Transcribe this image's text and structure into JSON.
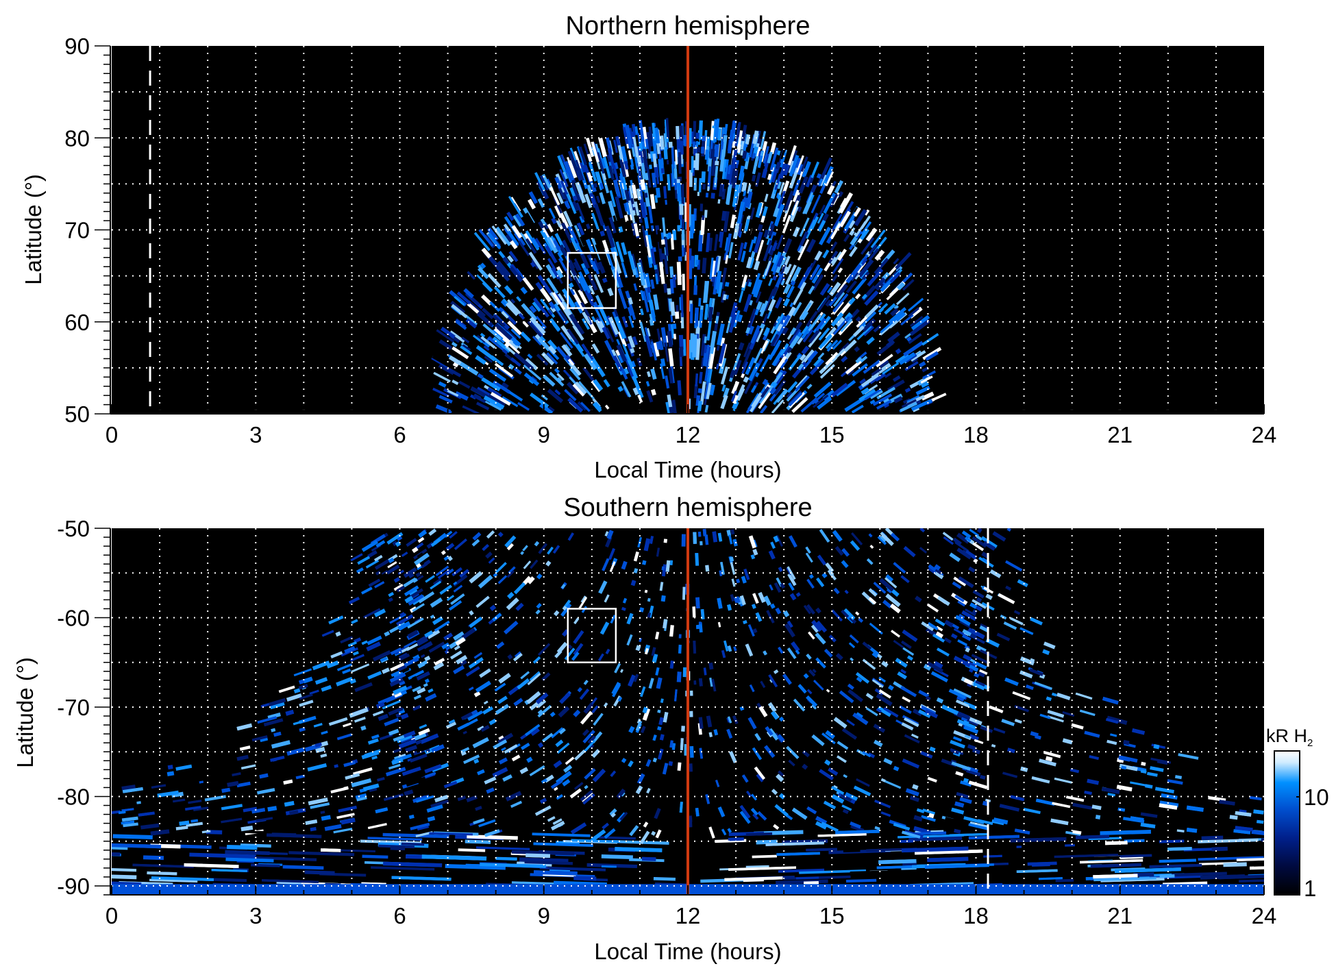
{
  "chart_data": [
    {
      "type": "heatmap",
      "title": "Northern hemisphere",
      "xlabel": "Local Time (hours)",
      "ylabel": "Latitude (°)",
      "xlim": [
        0,
        24
      ],
      "ylim": [
        50,
        90
      ],
      "xticks": [
        "0",
        "3",
        "6",
        "9",
        "12",
        "15",
        "18",
        "21",
        "24"
      ],
      "yticks": [
        "50",
        "60",
        "70",
        "80",
        "90"
      ],
      "grid": true,
      "emission_extent": {
        "lt_min_at_lat_min": 7,
        "lt_max_at_lat_min": 17.2,
        "lat_max": 80
      },
      "markers": {
        "red_line_lt": 12,
        "dashed_line_lt": 0.8,
        "box": {
          "lt": [
            9.5,
            10.5
          ],
          "lat": [
            61.5,
            67.5
          ]
        }
      }
    },
    {
      "type": "heatmap",
      "title": "Southern hemisphere",
      "xlabel": "Local Time (hours)",
      "ylabel": "Latitude (°)",
      "xlim": [
        0,
        24
      ],
      "ylim": [
        -91,
        -50
      ],
      "xticks": [
        "0",
        "3",
        "6",
        "9",
        "12",
        "15",
        "18",
        "21",
        "24"
      ],
      "yticks": [
        "-90",
        "-80",
        "-70",
        "-60",
        "-50"
      ],
      "grid": true,
      "emission_extent": {
        "lt_min_at_lat_max": 5.5,
        "lt_max_at_lat_max": 19.2,
        "full_coverage_below_lat": -81
      },
      "markers": {
        "red_line_lt": 12,
        "dashed_line_lt": 18.25,
        "box": {
          "lt": [
            9.5,
            10.5
          ],
          "lat": [
            -65,
            -59
          ]
        }
      }
    }
  ],
  "colorbar": {
    "label": "kR H",
    "label_subscript": "2",
    "scale": "log",
    "range": [
      1,
      30
    ],
    "ticks": [
      "1",
      "10"
    ],
    "colors": [
      "#000000",
      "#000a40",
      "#00208c",
      "#0050d0",
      "#0090ff",
      "#d0ecff",
      "#ffffff"
    ]
  },
  "colors": {
    "red_line": "#d03a10",
    "grid": "#ffffff",
    "background": "#000000"
  }
}
